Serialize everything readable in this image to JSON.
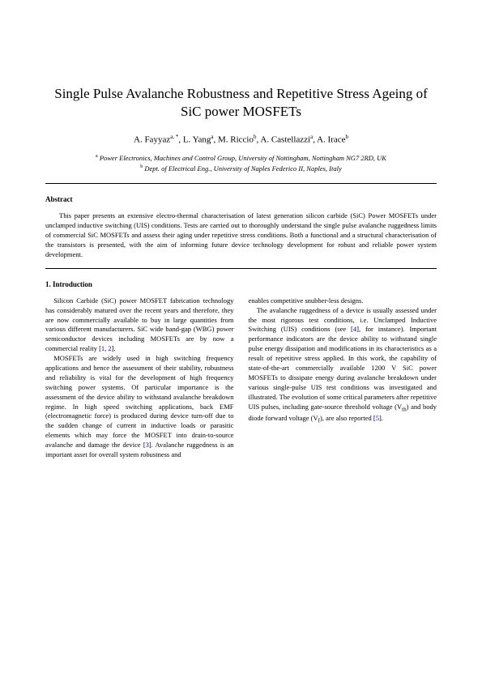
{
  "title": "Single Pulse Avalanche Robustness and Repetitive Stress Ageing of SiC power MOSFETs",
  "authors_html": "A. Fayyaz<sup>a, *</sup>, L. Yang<sup>a</sup>, M. Riccio<sup>b</sup>, A. Castellazzi<sup>a</sup>, A. Irace<sup>b</sup>",
  "affiliation_a": "Power Electronics, Machines and Control Group, University of Nottingham, Nottingham NG7 2RD, UK",
  "affiliation_b": "Dept. of Electrical Eng., University of Naples Federico II, Naples, Italy",
  "abstract_label": "Abstract",
  "abstract_text": "This paper presents an extensive electro-thermal characterisation of latest generation silicon carbide (SiC) Power MOSFETs under unclamped inductive switching (UIS) conditions. Tests are carried out to thoroughly understand the single pulse avalanche ruggedness limits of commercial SiC MOSFETs and assess their aging under repetitive stress conditions. Both a functional and a structural characterisation of the transistors is presented, with the aim of informing future device technology development for robust and reliable power system development.",
  "section1_title": "1. Introduction",
  "col1_p1_a": "Silicon Carbide (SiC) power MOSFET fabrication technology has considerably matured over the recent years and therefore, they are now commercially available to buy in large quantities from various different manufacturers. SiC wide band-gap (WBG) power semiconductor devices including MOSFETs are by now a commercial reality [",
  "col1_p1_ref1": "1",
  "col1_p1_mid": ", ",
  "col1_p1_ref2": "2",
  "col1_p1_b": "].",
  "col1_p2_a": "MOSFETs are widely used in high switching frequency applications and hence the assessment of their stability, robustness and reliability is vital for the development of high frequency switching power systems. Of particular importance is the assessment of the device ability to withstand avalanche breakdown regime. In high speed switching applications, back EMF (electromagnetic force) is produced during device turn-off due to the sudden change of current in inductive loads or parasitic elements which may force the MOSFET into drain-to-source avalanche and damage the device [",
  "col1_p2_ref3": "3",
  "col1_p2_b": "]. Avalanche ruggedness is an important asset for overall system robustness and",
  "col2_p1": "enables competitive snubber-less designs.",
  "col2_p2_a": "The avalanche ruggedness of a device is usually assessed under the most rigorous test conditions, i.e. Unclamped Inductive Switching (UIS) conditions (see [",
  "col2_p2_ref4": "4",
  "col2_p2_b": "], for instance). Important performance indicators are the device ability to withstand single pulse energy dissipation and modifications in its characteristics as a result of repetitive stress applied. In this work, the capability of state-of-the-art commercially available 1200 V SiC power MOSFETs to dissipate energy during avalanche breakdown under various single-pulse UIS test conditions was investigated and illustrated. The evolution of some critical parameters after repetitive UIS pulses, including gate-source threshold voltage (V",
  "col2_p2_sub1": "th",
  "col2_p2_c": ") and body diode forward voltage (V",
  "col2_p2_sub2": "f",
  "col2_p2_d": "), are also reported [",
  "col2_p2_ref5": "5",
  "col2_p2_e": "].",
  "colors": {
    "link": "#0000cc",
    "text": "#000000",
    "bg": "#ffffff"
  }
}
